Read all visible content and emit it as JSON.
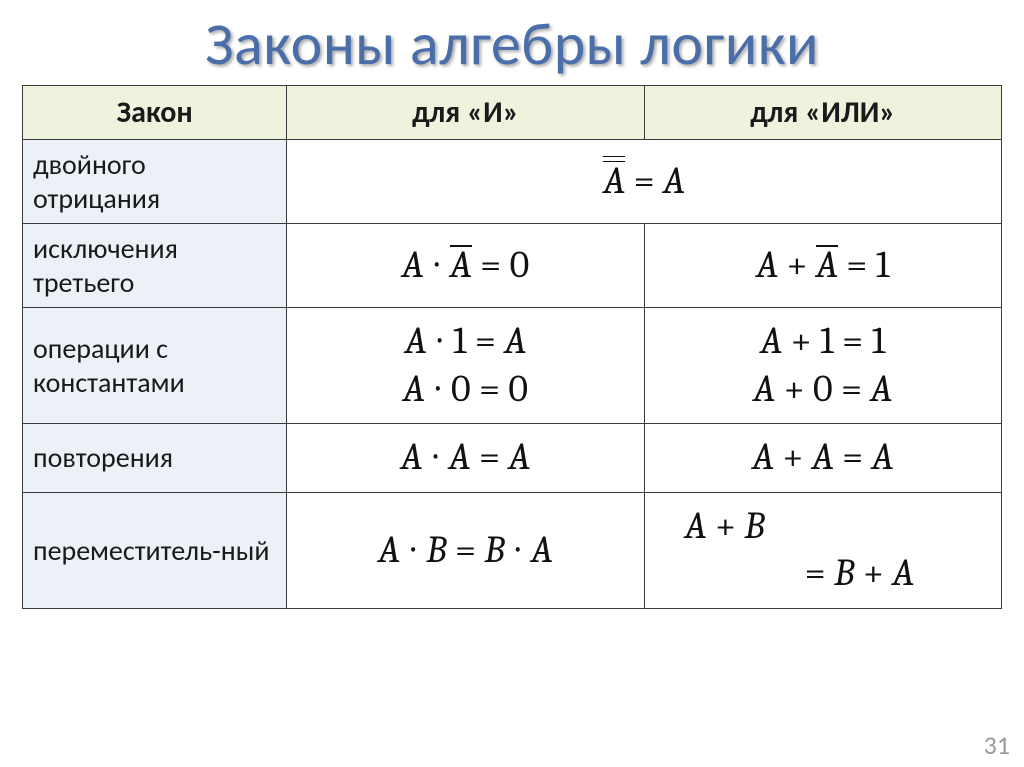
{
  "title": "Законы алгебры логики",
  "page_number": "31",
  "colors": {
    "title_color": "#4a6ea9",
    "header_bg": "#eef3de",
    "label_bg": "#ecf0f7",
    "border": "#3a3a3a",
    "formula_color": "#111111",
    "page_num_color": "#9a9a9a"
  },
  "columns": {
    "c0_width_pct": 27,
    "c1_width_pct": 36.5,
    "c2_width_pct": 36.5
  },
  "typography": {
    "title_fontsize": 60,
    "header_fontsize": 30,
    "label_fontsize": 28,
    "formula_fontsize": 38,
    "formula_font": "Cambria Math"
  },
  "headers": {
    "law": "Закон",
    "and": "для «И»",
    "or": "для «ИЛИ»"
  },
  "rows": [
    {
      "label": "двойного отрицания",
      "span": true,
      "merged_formula": {
        "parts": [
          {
            "t": "A",
            "ital": true,
            "bar": 2
          },
          {
            "t": " = "
          },
          {
            "t": "A",
            "ital": true
          }
        ]
      }
    },
    {
      "label": "исключения третьего",
      "and_formula": {
        "parts": [
          {
            "t": "A",
            "ital": true
          },
          {
            "t": " ∙ "
          },
          {
            "t": "A",
            "ital": true,
            "bar": 1
          },
          {
            "t": " = 0"
          }
        ]
      },
      "or_formula": {
        "parts": [
          {
            "t": "A",
            "ital": true
          },
          {
            "t": " + "
          },
          {
            "t": "A",
            "ital": true,
            "bar": 1
          },
          {
            "t": " = 1"
          }
        ]
      }
    },
    {
      "label": "операции с константами",
      "and_lines": [
        {
          "parts": [
            {
              "t": "A",
              "ital": true
            },
            {
              "t": " ∙ 1 = "
            },
            {
              "t": "A",
              "ital": true
            }
          ]
        },
        {
          "parts": [
            {
              "t": "A",
              "ital": true
            },
            {
              "t": " ∙ 0 = 0"
            }
          ]
        }
      ],
      "or_lines": [
        {
          "parts": [
            {
              "t": "A",
              "ital": true
            },
            {
              "t": " + 1 = 1"
            }
          ]
        },
        {
          "parts": [
            {
              "t": "A",
              "ital": true
            },
            {
              "t": " + 0 = "
            },
            {
              "t": "A",
              "ital": true
            }
          ]
        }
      ]
    },
    {
      "label": "повторения",
      "and_formula": {
        "parts": [
          {
            "t": "A",
            "ital": true
          },
          {
            "t": " ∙ "
          },
          {
            "t": "A",
            "ital": true
          },
          {
            "t": " = "
          },
          {
            "t": "A",
            "ital": true
          }
        ]
      },
      "or_formula": {
        "parts": [
          {
            "t": "A",
            "ital": true
          },
          {
            "t": " + "
          },
          {
            "t": "A",
            "ital": true
          },
          {
            "t": " = "
          },
          {
            "t": "A",
            "ital": true
          }
        ]
      }
    },
    {
      "label": "переместитель-ный",
      "and_formula": {
        "parts": [
          {
            "t": "A",
            "ital": true
          },
          {
            "t": " ∙ "
          },
          {
            "t": "B",
            "ital": true
          },
          {
            "t": " = "
          },
          {
            "t": "B",
            "ital": true
          },
          {
            "t": " ∙ "
          },
          {
            "t": "A",
            "ital": true
          }
        ]
      },
      "or_lines": [
        {
          "parts": [
            {
              "t": "A",
              "ital": true
            },
            {
              "t": " + "
            },
            {
              "t": "B",
              "ital": true
            }
          ]
        },
        {
          "indent": true,
          "parts": [
            {
              "t": "= "
            },
            {
              "t": "B",
              "ital": true
            },
            {
              "t": " + "
            },
            {
              "t": "A",
              "ital": true
            }
          ]
        }
      ],
      "or_align_left": true
    }
  ]
}
